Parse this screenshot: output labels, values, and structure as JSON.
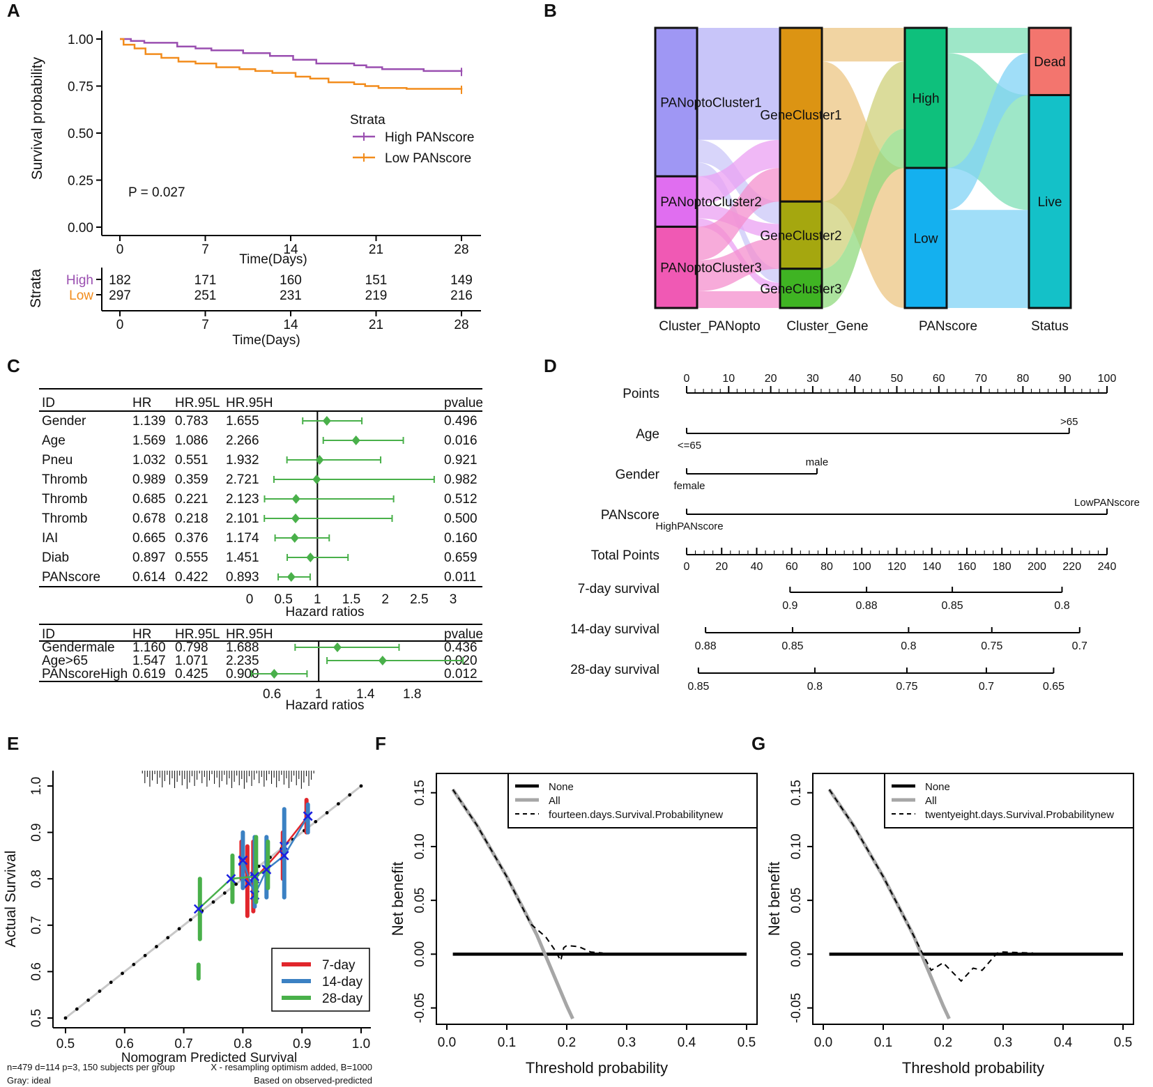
{
  "chart_data": [
    {
      "panel": "A",
      "type": "line",
      "ylabel": "Survival probability",
      "xlabel": "Time(Days)",
      "ylim": [
        0,
        1
      ],
      "yticks": [
        "0.00",
        "0.25",
        "0.50",
        "0.75",
        "1.00"
      ],
      "xticks": [
        "0",
        "7",
        "14",
        "21",
        "28"
      ],
      "xlim": [
        0,
        28
      ],
      "legend_title": "Strata",
      "pvalue_text": "P = 0.027",
      "series": [
        {
          "name": "High PANscore",
          "color": "#9a4fb0",
          "x": [
            0,
            0.9,
            2,
            4.7,
            6.2,
            7.5,
            10.1,
            12.3,
            14.2,
            16.1,
            19.2,
            20.2,
            21.5,
            24.9,
            28
          ],
          "y": [
            1.0,
            0.99,
            0.98,
            0.96,
            0.95,
            0.94,
            0.925,
            0.91,
            0.89,
            0.87,
            0.86,
            0.85,
            0.84,
            0.83,
            0.825
          ]
        },
        {
          "name": "Low PANscore",
          "color": "#f28c1c",
          "x": [
            0,
            0.3,
            1.2,
            2.1,
            3.4,
            4.8,
            6.2,
            7.9,
            9.8,
            11.1,
            12.5,
            14.4,
            15.6,
            17.1,
            19.2,
            20.1,
            21.2,
            23.5,
            28
          ],
          "y": [
            1.0,
            0.97,
            0.95,
            0.92,
            0.9,
            0.88,
            0.87,
            0.85,
            0.84,
            0.83,
            0.82,
            0.8,
            0.79,
            0.77,
            0.76,
            0.75,
            0.74,
            0.735,
            0.73
          ]
        }
      ],
      "risk_table": {
        "title": "Strata",
        "xlabel": "Time(Days)",
        "rows": [
          {
            "label": "High",
            "color": "#9a4fb0",
            "values": [
              "182",
              "171",
              "160",
              "151",
              "149"
            ]
          },
          {
            "label": "Low",
            "color": "#f28c1c",
            "values": [
              "297",
              "251",
              "231",
              "219",
              "216"
            ]
          }
        ]
      }
    },
    {
      "panel": "B",
      "type": "sankey",
      "axes": [
        "Cluster_PANopto",
        "Cluster_Gene",
        "PANscore",
        "Status"
      ],
      "columns": [
        {
          "nodes": [
            {
              "name": "PANoptoCluster1",
              "color": "#9f97f4",
              "value": 0.53
            },
            {
              "name": "PANoptoCluster2",
              "color": "#e06ef0",
              "value": 0.18
            },
            {
              "name": "PANoptoCluster3",
              "color": "#f059b4",
              "value": 0.29
            }
          ]
        },
        {
          "nodes": [
            {
              "name": "GeneCluster1",
              "color": "#dc9413",
              "value": 0.62
            },
            {
              "name": "GeneCluster2",
              "color": "#a5a70f",
              "value": 0.24
            },
            {
              "name": "GeneCluster3",
              "color": "#3fb423",
              "value": 0.14
            }
          ]
        },
        {
          "nodes": [
            {
              "name": "High",
              "color": "#0ec07c",
              "value": 0.5
            },
            {
              "name": "Low",
              "color": "#14b0ef",
              "value": 0.5
            }
          ]
        },
        {
          "nodes": [
            {
              "name": "Dead",
              "color": "#f3756e",
              "value": 0.24
            },
            {
              "name": "Live",
              "color": "#14c1c8",
              "value": 0.76
            }
          ]
        }
      ],
      "flows": [
        {
          "from": [
            0,
            0
          ],
          "to": [
            1,
            0
          ],
          "value": 0.4,
          "color": "#b6b1f7"
        },
        {
          "from": [
            0,
            0
          ],
          "to": [
            1,
            1
          ],
          "value": 0.08,
          "color": "#cbc7f8"
        },
        {
          "from": [
            0,
            0
          ],
          "to": [
            1,
            2
          ],
          "value": 0.05,
          "color": "#cbc7f8"
        },
        {
          "from": [
            0,
            1
          ],
          "to": [
            1,
            0
          ],
          "value": 0.1,
          "color": "#eba0f3"
        },
        {
          "from": [
            0,
            1
          ],
          "to": [
            1,
            1
          ],
          "value": 0.05,
          "color": "#eba0f3"
        },
        {
          "from": [
            0,
            1
          ],
          "to": [
            1,
            2
          ],
          "value": 0.03,
          "color": "#eba0f3"
        },
        {
          "from": [
            0,
            2
          ],
          "to": [
            1,
            0
          ],
          "value": 0.12,
          "color": "#f48fcd"
        },
        {
          "from": [
            0,
            2
          ],
          "to": [
            1,
            1
          ],
          "value": 0.11,
          "color": "#f48fcd"
        },
        {
          "from": [
            0,
            2
          ],
          "to": [
            1,
            2
          ],
          "value": 0.06,
          "color": "#f48fcd"
        },
        {
          "from": [
            1,
            0
          ],
          "to": [
            2,
            0
          ],
          "value": 0.12,
          "color": "#ecc683"
        },
        {
          "from": [
            1,
            0
          ],
          "to": [
            2,
            1
          ],
          "value": 0.5,
          "color": "#ecc683"
        },
        {
          "from": [
            1,
            1
          ],
          "to": [
            2,
            0
          ],
          "value": 0.24,
          "color": "#cfd07a"
        },
        {
          "from": [
            1,
            2
          ],
          "to": [
            2,
            0
          ],
          "value": 0.14,
          "color": "#90d97e"
        },
        {
          "from": [
            2,
            0
          ],
          "to": [
            3,
            0
          ],
          "value": 0.09,
          "color": "#7edfb6"
        },
        {
          "from": [
            2,
            0
          ],
          "to": [
            3,
            1
          ],
          "value": 0.41,
          "color": "#7edfb6"
        },
        {
          "from": [
            2,
            1
          ],
          "to": [
            3,
            0
          ],
          "value": 0.15,
          "color": "#80d3f5"
        },
        {
          "from": [
            2,
            1
          ],
          "to": [
            3,
            1
          ],
          "value": 0.35,
          "color": "#80d3f5"
        }
      ]
    },
    {
      "panel": "C",
      "type": "forest",
      "headers": [
        "ID",
        "HR",
        "HR.95L",
        "HR.95H",
        "pvalue"
      ],
      "marker_color": "#49b04a",
      "sections": [
        {
          "xlim": [
            0,
            3
          ],
          "xticks": [
            "0",
            "0.5",
            "1",
            "1.5",
            "2",
            "2.5",
            "3"
          ],
          "xlabel": "Hazard ratios",
          "rows": [
            {
              "id": "Gender",
              "hr": "1.139",
              "l": "0.783",
              "h": "1.655",
              "p": "0.496"
            },
            {
              "id": "Age",
              "hr": "1.569",
              "l": "1.086",
              "h": "2.266",
              "p": "0.016"
            },
            {
              "id": "Pneu",
              "hr": "1.032",
              "l": "0.551",
              "h": "1.932",
              "p": "0.921"
            },
            {
              "id": "Thromb",
              "hr": "0.989",
              "l": "0.359",
              "h": "2.721",
              "p": "0.982"
            },
            {
              "id": "Thromb",
              "hr": "0.685",
              "l": "0.221",
              "h": "2.123",
              "p": "0.512"
            },
            {
              "id": "Thromb",
              "hr": "0.678",
              "l": "0.218",
              "h": "2.101",
              "p": "0.500"
            },
            {
              "id": "IAI",
              "hr": "0.665",
              "l": "0.376",
              "h": "1.174",
              "p": "0.160"
            },
            {
              "id": "Diab",
              "hr": "0.897",
              "l": "0.555",
              "h": "1.451",
              "p": "0.659"
            },
            {
              "id": "PANscore",
              "hr": "0.614",
              "l": "0.422",
              "h": "0.893",
              "p": "0.011"
            }
          ]
        },
        {
          "xlim": [
            0.42,
            1.9
          ],
          "xticks": [
            "0.6",
            "1",
            "1.4",
            "1.8"
          ],
          "xlabel": "Hazard ratios",
          "rows": [
            {
              "id": "Gendermale",
              "hr": "1.160",
              "l": "0.798",
              "h": "1.688",
              "p": "0.436"
            },
            {
              "id": "Age>65",
              "hr": "1.547",
              "l": "1.071",
              "h": "2.235",
              "p": "0.020"
            },
            {
              "id": "PANscoreHigh",
              "hr": "0.619",
              "l": "0.425",
              "h": "0.900",
              "p": "0.012"
            }
          ]
        }
      ]
    },
    {
      "panel": "D",
      "type": "nomogram",
      "scales": [
        {
          "label": "Points",
          "start": 0,
          "end": 100,
          "ticks": [
            "0",
            "10",
            "20",
            "30",
            "40",
            "50",
            "60",
            "70",
            "80",
            "90",
            "100"
          ],
          "minor": 50
        },
        {
          "label": "Age",
          "start": 0,
          "end": 91,
          "levels": [
            {
              "text": "<=65",
              "at": 0,
              "pos": "below"
            },
            {
              "text": ">65",
              "at": 91,
              "pos": "above"
            }
          ]
        },
        {
          "label": "Gender",
          "start": 0,
          "end": 31,
          "levels": [
            {
              "text": "female",
              "at": 0,
              "pos": "below"
            },
            {
              "text": "male",
              "at": 31,
              "pos": "above"
            }
          ]
        },
        {
          "label": "PANscore",
          "start": 0,
          "end": 100,
          "levels": [
            {
              "text": "HighPANscore",
              "at": 0,
              "pos": "below"
            },
            {
              "text": "LowPANscore",
              "at": 100,
              "pos": "above"
            }
          ]
        },
        {
          "label": "Total Points",
          "start": 0,
          "end": 100,
          "ticks": [
            "0",
            "20",
            "40",
            "60",
            "80",
            "100",
            "120",
            "140",
            "160",
            "180",
            "200",
            "220",
            "240"
          ],
          "minor": 48
        },
        {
          "label": "7-day survival",
          "start": 24.6,
          "end": 89.3,
          "ticks": [
            "0.9",
            "0.88",
            "0.85",
            "0.8"
          ],
          "at": [
            24.6,
            42.8,
            63.2,
            89.3
          ]
        },
        {
          "label": "14-day survival",
          "start": 4.5,
          "end": 93.5,
          "ticks": [
            "0.88",
            "0.85",
            "0.8",
            "0.75",
            "0.7"
          ],
          "at": [
            4.5,
            25.2,
            52.8,
            72.6,
            93.5
          ]
        },
        {
          "label": "28-day survival",
          "start": 2.8,
          "end": 87.3,
          "ticks": [
            "0.85",
            "0.8",
            "0.75",
            "0.7",
            "0.65"
          ],
          "at": [
            2.8,
            30.5,
            52.4,
            71.3,
            87.3
          ]
        }
      ]
    },
    {
      "panel": "E",
      "type": "line",
      "xlabel": "Nomogram Predicted Survival",
      "ylabel": "Actual Survival",
      "xlim": [
        0.5,
        1.0
      ],
      "ylim": [
        0.5,
        1.0
      ],
      "xticks": [
        "0.5",
        "0.6",
        "0.7",
        "0.8",
        "0.9",
        "1.0"
      ],
      "yticks": [
        "0.5",
        "0.6",
        "0.7",
        "0.8",
        "0.9",
        "1.0"
      ],
      "series": [
        {
          "name": "7-day",
          "color": "#e1262c",
          "x": [
            0.8,
            0.81,
            0.82,
            0.87,
            0.91
          ],
          "y": [
            0.838,
            0.79,
            0.8,
            0.87,
            0.935
          ],
          "ci": [
            [
              0.8,
              0.88
            ],
            [
              0.72,
              0.87
            ],
            [
              0.73,
              0.88
            ],
            [
              0.8,
              0.9
            ],
            [
              0.9,
              0.97
            ]
          ]
        },
        {
          "name": "14-day",
          "color": "#3b81c3",
          "x": [
            0.8,
            0.82,
            0.84,
            0.87,
            0.91
          ],
          "y": [
            0.84,
            0.765,
            0.82,
            0.85,
            0.935
          ],
          "ci": [
            [
              0.78,
              0.9
            ],
            [
              0.74,
              0.89
            ],
            [
              0.76,
              0.89
            ],
            [
              0.76,
              0.95
            ],
            [
              0.9,
              0.96
            ]
          ]
        },
        {
          "name": "28-day",
          "color": "#49b04a",
          "x": [
            0.725,
            0.78,
            0.82,
            0.84
          ],
          "y": [
            0.735,
            0.8,
            0.805,
            0.82
          ],
          "ci": [
            [
              0.67,
              0.8
            ],
            [
              0.75,
              0.85
            ],
            [
              0.75,
              0.89
            ],
            [
              0.78,
              0.88
            ]
          ],
          "extra_ci": [
            [
              0.725,
              0.585,
              0.615
            ]
          ]
        }
      ],
      "footnotes": [
        "n=479 d=114 p=3, 150 subjects per group",
        "X - resampling optimism added, B=1000",
        "Gray: ideal",
        "Based on observed-predicted"
      ]
    },
    {
      "panel": "F",
      "type": "line",
      "xlabel": "Threshold probability",
      "ylabel": "Net benefit",
      "xlim": [
        0,
        0.5
      ],
      "ylim": [
        -0.06,
        0.155
      ],
      "xticks": [
        "0.0",
        "0.1",
        "0.2",
        "0.3",
        "0.4",
        "0.5"
      ],
      "yticks": [
        "-0.05",
        "0.00",
        "0.05",
        "0.10",
        "0.15"
      ],
      "series": [
        {
          "name": "None",
          "color": "#000000",
          "x": [
            0.01,
            0.5
          ],
          "y": [
            0,
            0
          ]
        },
        {
          "name": "All",
          "color": "#a6a6a6",
          "x": [
            0.01,
            0.05,
            0.1,
            0.15,
            0.2,
            0.21
          ],
          "y": [
            0.153,
            0.12,
            0.072,
            0.018,
            -0.048,
            -0.06
          ]
        },
        {
          "name": "fourteen.days.Survival.Probabilitynew",
          "color": "#000000",
          "x": [
            0.01,
            0.05,
            0.1,
            0.14,
            0.165,
            0.18,
            0.19,
            0.195,
            0.2,
            0.22,
            0.24,
            0.26
          ],
          "y": [
            0.153,
            0.12,
            0.072,
            0.028,
            0.016,
            0.004,
            -0.006,
            0.006,
            0.008,
            0.007,
            0.002,
            0.001
          ]
        }
      ]
    },
    {
      "panel": "G",
      "type": "line",
      "xlabel": "Threshold probability",
      "ylabel": "Net benefit",
      "xlim": [
        0,
        0.5
      ],
      "ylim": [
        -0.06,
        0.155
      ],
      "xticks": [
        "0.0",
        "0.1",
        "0.2",
        "0.3",
        "0.4",
        "0.5"
      ],
      "yticks": [
        "-0.05",
        "0.00",
        "0.05",
        "0.10",
        "0.15"
      ],
      "series": [
        {
          "name": "None",
          "color": "#000000",
          "x": [
            0.01,
            0.5
          ],
          "y": [
            0,
            0
          ]
        },
        {
          "name": "All",
          "color": "#a6a6a6",
          "x": [
            0.01,
            0.05,
            0.1,
            0.15,
            0.2,
            0.21
          ],
          "y": [
            0.153,
            0.12,
            0.072,
            0.018,
            -0.048,
            -0.06
          ]
        },
        {
          "name": "twentyeight.days.Survival.Probabilitynew",
          "color": "#000000",
          "x": [
            0.01,
            0.05,
            0.1,
            0.15,
            0.168,
            0.18,
            0.2,
            0.23,
            0.25,
            0.265,
            0.29,
            0.3,
            0.35
          ],
          "y": [
            0.153,
            0.12,
            0.072,
            0.018,
            -0.002,
            -0.015,
            -0.008,
            -0.025,
            -0.013,
            -0.015,
            0.001,
            0.002,
            0.001
          ]
        }
      ]
    }
  ]
}
